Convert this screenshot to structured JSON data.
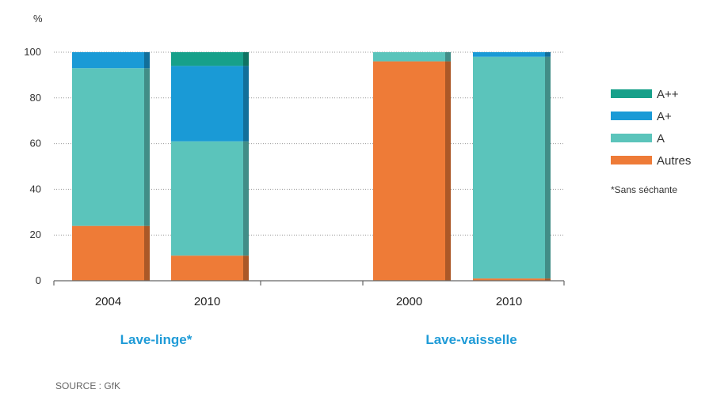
{
  "chart_data": {
    "type": "bar",
    "stacked": true,
    "y_unit": "%",
    "ylim": [
      0,
      100
    ],
    "yticks": [
      0,
      20,
      40,
      60,
      80,
      100
    ],
    "grid": true,
    "legend_position": "right",
    "groups": [
      {
        "label": "Lave-linge*",
        "categories": [
          "2004",
          "2010"
        ]
      },
      {
        "label": "Lave-vaisselle",
        "categories": [
          "2000",
          "2010"
        ]
      }
    ],
    "categories": [
      "2004",
      "2010",
      "2000",
      "2010"
    ],
    "series": [
      {
        "name": "Autres",
        "color": "#ee7b37",
        "values": [
          24,
          11,
          96,
          1
        ]
      },
      {
        "name": "A",
        "color": "#5bc4bb",
        "values": [
          69,
          50,
          4,
          97
        ]
      },
      {
        "name": "A+",
        "color": "#1a9ad6",
        "values": [
          7,
          33,
          0,
          2
        ]
      },
      {
        "name": "A++",
        "color": "#17a08a",
        "values": [
          0,
          6,
          0,
          0
        ]
      }
    ],
    "legend_order": [
      "A++",
      "A+",
      "A",
      "Autres"
    ],
    "note": "*Sans séchante",
    "source": "SOURCE : GfK"
  }
}
